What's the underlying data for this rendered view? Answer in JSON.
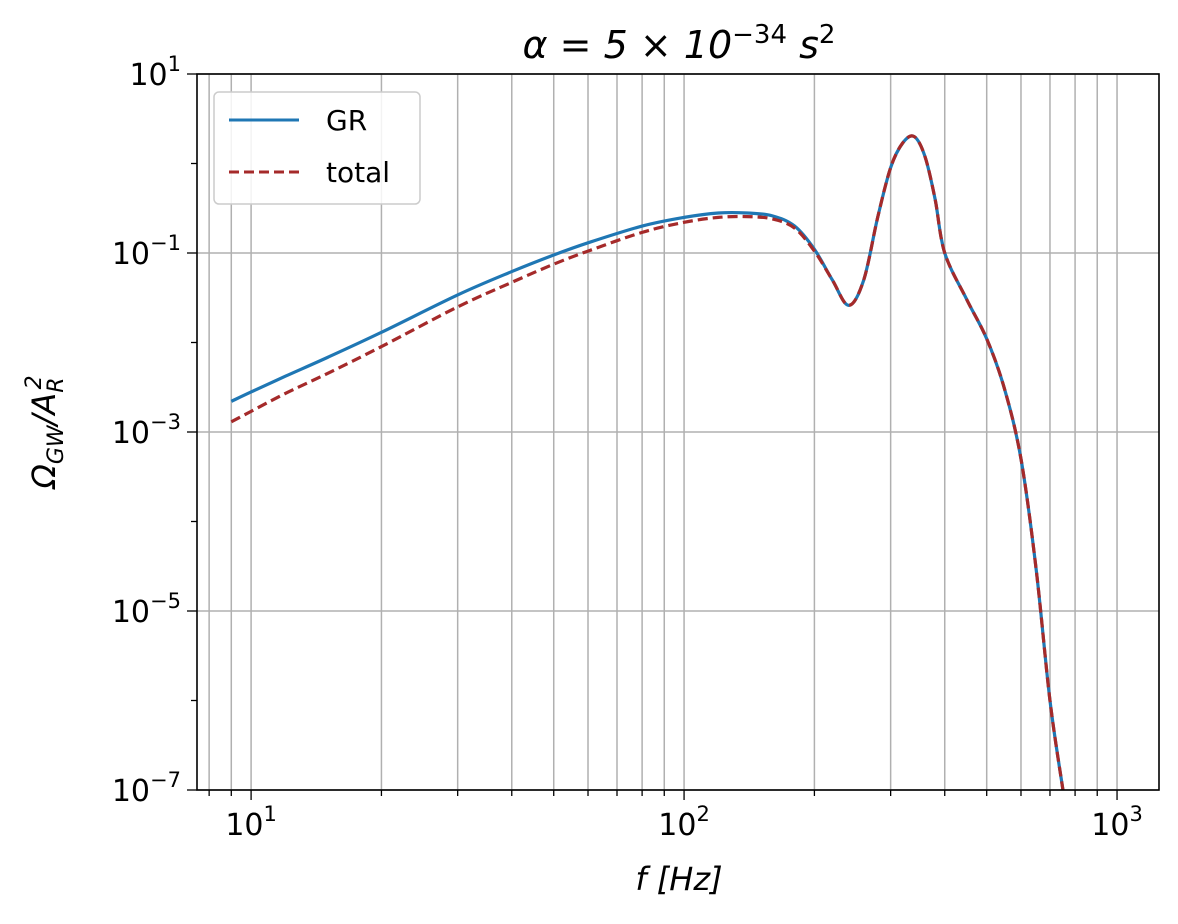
{
  "chart_data": {
    "type": "line",
    "title": {
      "base": "α = 5 × 10",
      "exp": "−34",
      "unit": " s",
      "unit_exp": "2"
    },
    "xlabel": "f [Hz]",
    "ylabel": "Ω_GW/A_R^2",
    "xscale": "log",
    "yscale": "log",
    "xlim": [
      7.5,
      1250
    ],
    "ylim": [
      1e-07,
      10
    ],
    "grid": true,
    "legend_position": "top-left",
    "x_ticks": [
      {
        "value": 10,
        "base": "10",
        "exp": "1"
      },
      {
        "value": 100,
        "base": "10",
        "exp": "2"
      },
      {
        "value": 1000,
        "base": "10",
        "exp": "3"
      }
    ],
    "y_ticks": [
      {
        "value": 10,
        "base": "10",
        "exp": "1"
      },
      {
        "value": 0.1,
        "base": "10",
        "exp": "−1"
      },
      {
        "value": 0.001,
        "base": "10",
        "exp": "−3"
      },
      {
        "value": 1e-05,
        "base": "10",
        "exp": "−5"
      },
      {
        "value": 1e-07,
        "base": "10",
        "exp": "−7"
      }
    ],
    "series": [
      {
        "name": "GR",
        "color": "#1f77b4",
        "style": "solid",
        "x": [
          9,
          10,
          12,
          15,
          20,
          30,
          40,
          50,
          60,
          80,
          100,
          120,
          140,
          160,
          180,
          200,
          220,
          240,
          260,
          280,
          300,
          320,
          340,
          360,
          380,
          400,
          450,
          500,
          550,
          600,
          650,
          700,
          750
        ],
        "y": [
          0.0022,
          0.0028,
          0.0042,
          0.0068,
          0.013,
          0.034,
          0.062,
          0.095,
          0.13,
          0.2,
          0.25,
          0.28,
          0.28,
          0.26,
          0.2,
          0.11,
          0.05,
          0.026,
          0.05,
          0.25,
          0.9,
          1.7,
          2.0,
          1.2,
          0.4,
          0.1,
          0.03,
          0.011,
          0.003,
          0.0005,
          3e-05,
          1e-06,
          1e-07
        ]
      },
      {
        "name": "total",
        "color": "#a52a2a",
        "style": "dashed",
        "x": [
          9,
          10,
          12,
          15,
          20,
          30,
          40,
          50,
          60,
          80,
          100,
          120,
          140,
          160,
          180,
          200,
          220,
          240,
          260,
          280,
          300,
          320,
          340,
          360,
          380,
          400,
          450,
          500,
          550,
          600,
          650,
          700,
          750
        ],
        "y": [
          0.0013,
          0.0017,
          0.0027,
          0.0045,
          0.009,
          0.025,
          0.047,
          0.075,
          0.105,
          0.17,
          0.22,
          0.25,
          0.255,
          0.24,
          0.19,
          0.105,
          0.05,
          0.026,
          0.05,
          0.25,
          0.9,
          1.7,
          2.0,
          1.2,
          0.4,
          0.1,
          0.03,
          0.011,
          0.003,
          0.0005,
          3e-05,
          1e-06,
          1e-07
        ]
      }
    ]
  }
}
